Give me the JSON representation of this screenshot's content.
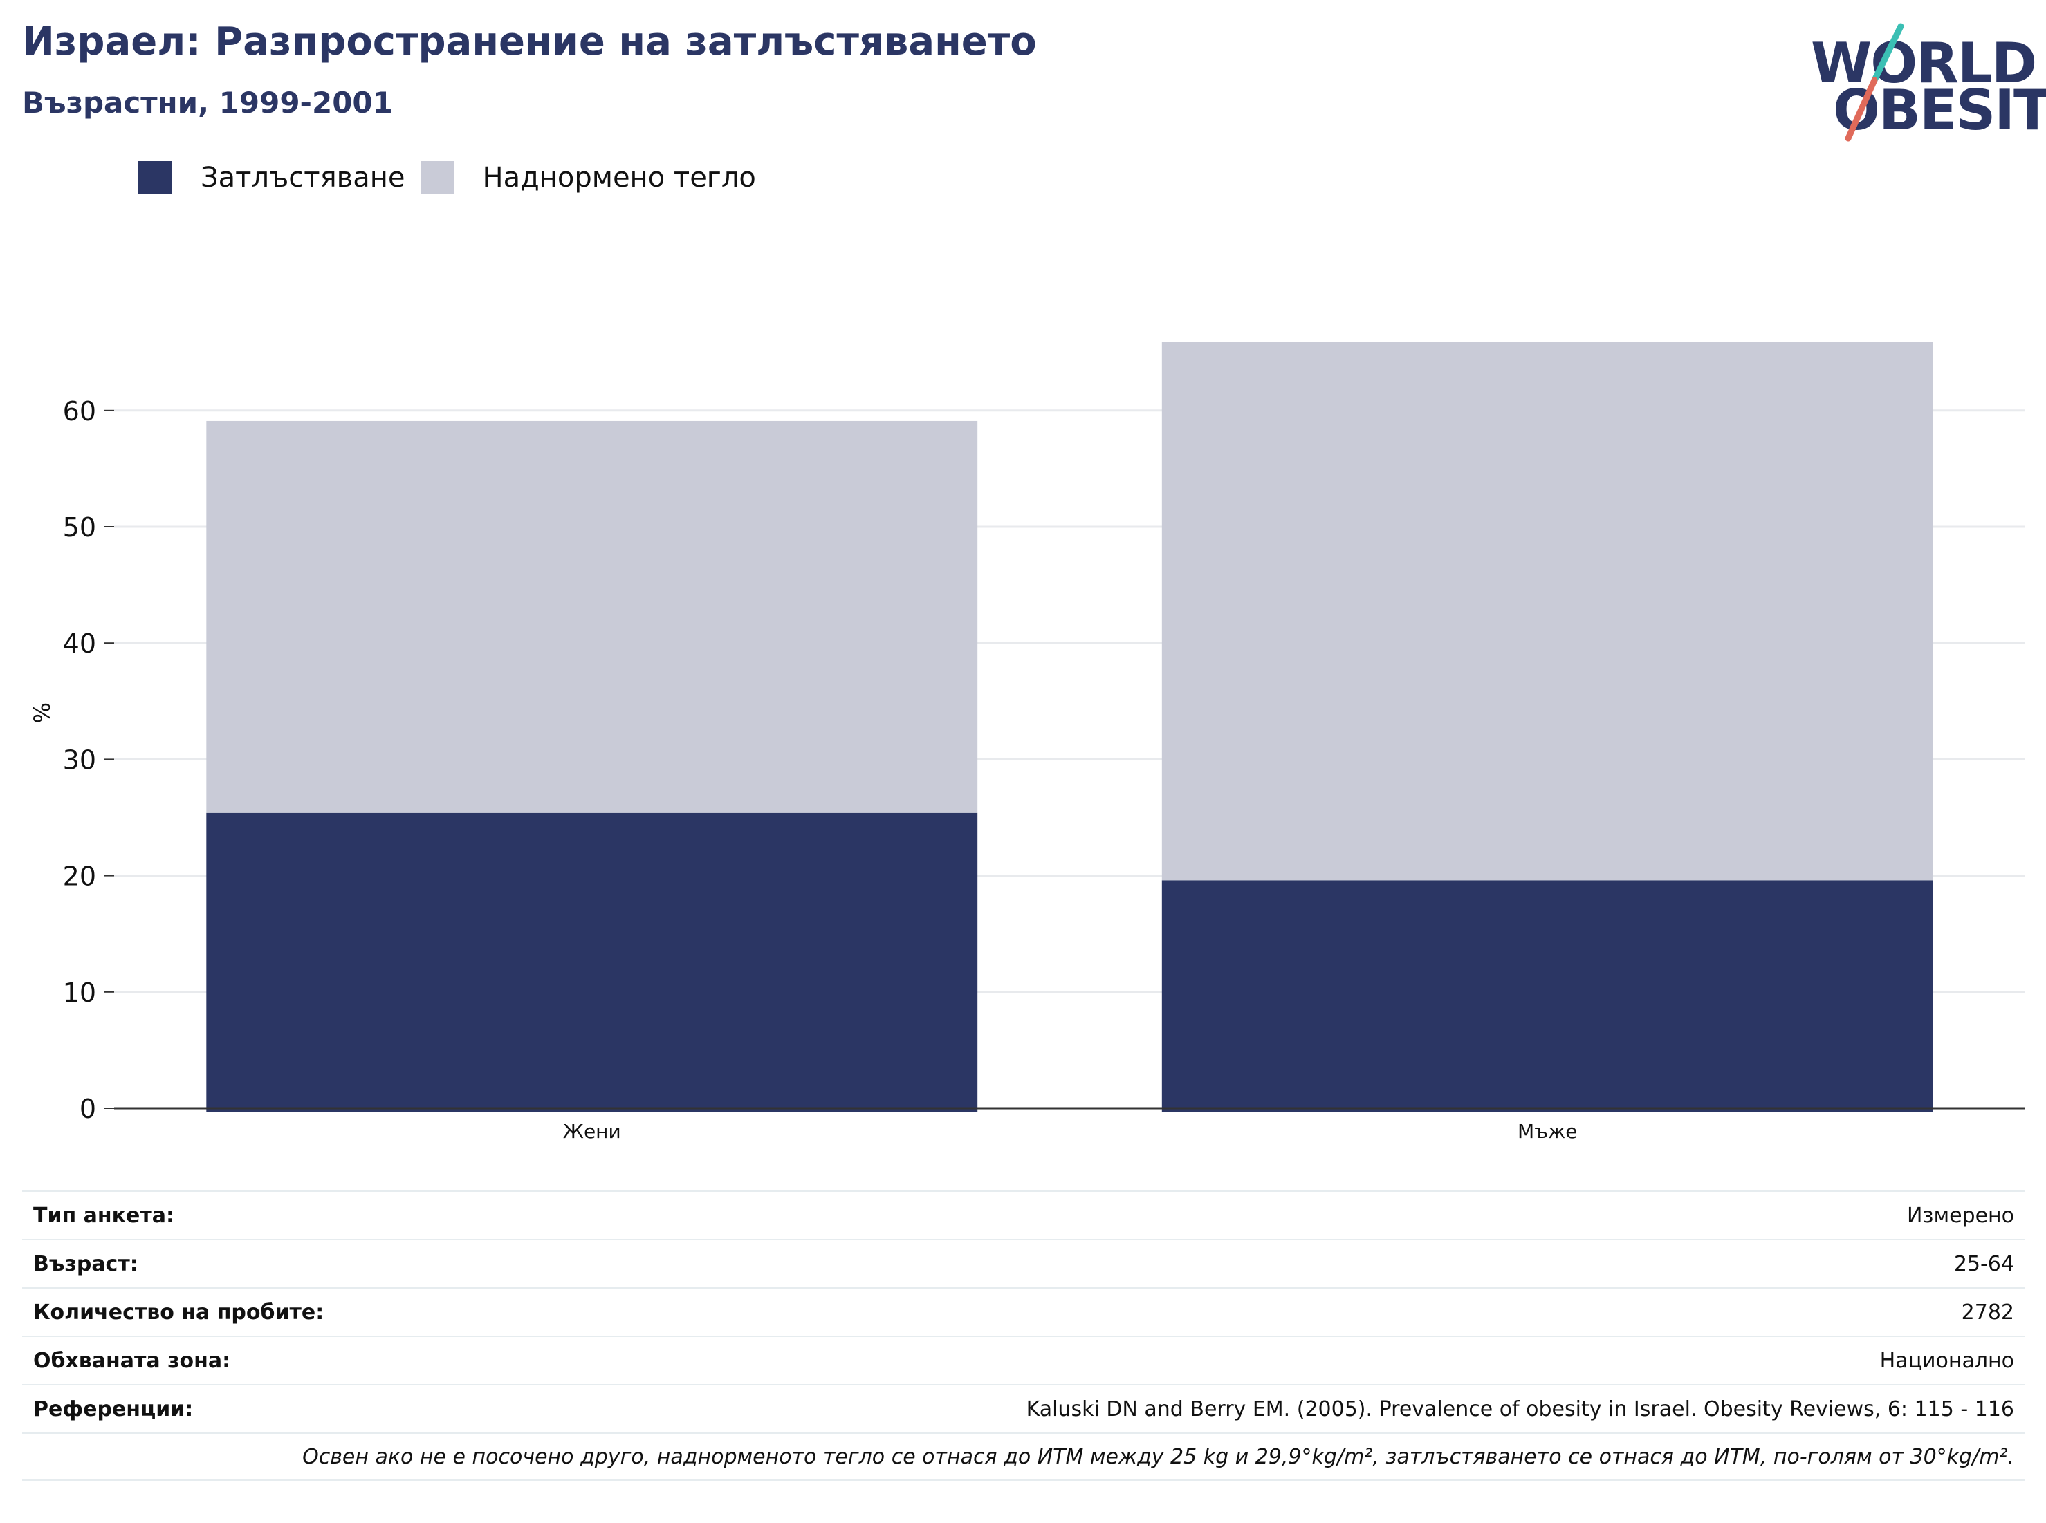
{
  "header": {
    "title": "Израел: Разпространение на затлъстяването",
    "subtitle": "Възрастни, 1999-2001"
  },
  "logo": {
    "line1": "WORLD",
    "line2": "OBESITY",
    "colors": {
      "text": "#2b3664",
      "slash_top": "#3bbfb4",
      "slash_bottom": "#e06a5a"
    }
  },
  "colors": {
    "obesity": "#2b3664",
    "overweight": "#c9cbd7",
    "grid": "#e8eaed",
    "axis": "#333333"
  },
  "chart_data": {
    "type": "bar",
    "stacked": true,
    "categories": [
      "Жени",
      "Мъже"
    ],
    "series": [
      {
        "name": "Затлъстяване",
        "values": [
          25.4,
          19.6
        ],
        "color": "#2b3664"
      },
      {
        "name": "Наднормено тегло",
        "values": [
          33.7,
          46.3
        ],
        "color": "#c9cbd7"
      }
    ],
    "title": "Израел: Разпространение на затлъстяването",
    "subtitle": "Възрастни, 1999-2001",
    "xlabel": "",
    "ylabel": "%",
    "ylim": [
      0,
      68
    ],
    "yticks": [
      0,
      10,
      20,
      30,
      40,
      50,
      60
    ],
    "grid": true,
    "legend": "top-left"
  },
  "info": {
    "rows": [
      {
        "label": "Тип анкета:",
        "value": "Измерено"
      },
      {
        "label": "Възраст:",
        "value": "25-64"
      },
      {
        "label": "Количество на пробите:",
        "value": "2782"
      },
      {
        "label": "Обхваната зона:",
        "value": "Национално"
      },
      {
        "label": "Референции:",
        "value": "Kaluski DN and Berry EM. (2005). Prevalence of obesity in Israel. Obesity Reviews, 6: 115 - 116"
      }
    ],
    "note": "Освен ако не е посочено друго, наднорменото тегло се отнася до ИТМ между 25 kg и 29,9°kg/m², затлъстяването се отнася до ИТМ, по-голям от 30°kg/m²."
  }
}
